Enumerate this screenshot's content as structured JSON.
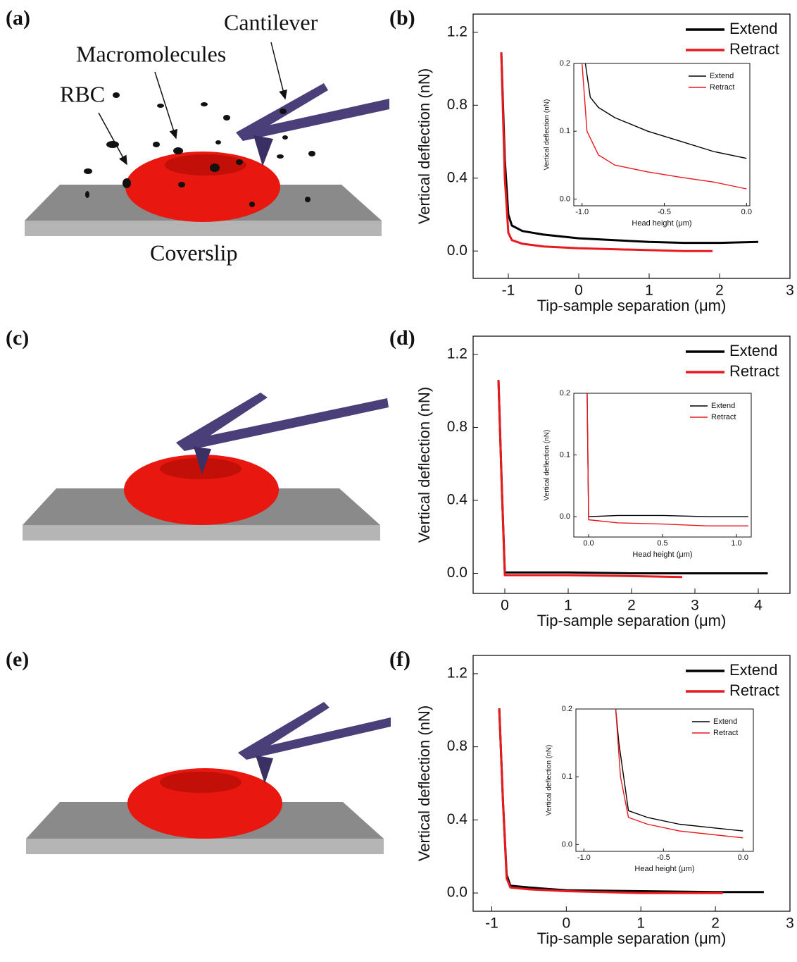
{
  "figure": {
    "panel_labels": [
      "(a)",
      "(b)",
      "(c)",
      "(d)",
      "(e)",
      "(f)"
    ],
    "annotations": {
      "cantilever": "Cantilever",
      "macromolecules": "Macromolecules",
      "rbc": "RBC",
      "coverslip": "Coverslip"
    }
  },
  "chart_data": [
    {
      "type": "line",
      "x_label": "Tip-sample separation (μm)",
      "y_label": "Vertical deflection (nN)",
      "xlim": [
        -1.5,
        3
      ],
      "ylim": [
        -0.15,
        1.3
      ],
      "xticks": [
        -1,
        0,
        1,
        2,
        3
      ],
      "yticks": [
        {
          "value": 0,
          "label": "0.0"
        },
        0.4,
        0.8,
        1.2
      ],
      "legend": "upper right",
      "series": [
        {
          "name": "Extend",
          "color": "#000000",
          "x": [
            -1.1,
            -1.05,
            -1.0,
            -0.95,
            -0.8,
            -0.5,
            0,
            0.5,
            1,
            1.5,
            2,
            2.55
          ],
          "values": [
            1.09,
            0.5,
            0.2,
            0.14,
            0.11,
            0.09,
            0.07,
            0.06,
            0.05,
            0.045,
            0.045,
            0.05
          ]
        },
        {
          "name": "Retract",
          "color": "#e8191f",
          "x": [
            -1.1,
            -1.05,
            -1.0,
            -0.95,
            -0.8,
            -0.5,
            0,
            0.5,
            1,
            1.5,
            1.9
          ],
          "values": [
            1.09,
            0.4,
            0.1,
            0.06,
            0.04,
            0.025,
            0.015,
            0.01,
            0.005,
            0,
            0
          ]
        }
      ]
    },
    {
      "type": "line",
      "x_label": "Head height (μm)",
      "y_label": "Vertical deflection (nN)",
      "xlim": [
        -1.05,
        0.02
      ],
      "ylim": [
        -0.01,
        0.2
      ],
      "xticks": [
        {
          "value": -1,
          "label": "-1.0"
        },
        -0.5,
        {
          "value": 0,
          "label": "0.0"
        }
      ],
      "yticks": [
        {
          "value": 0,
          "label": "0.0"
        },
        0.1,
        0.2
      ],
      "legend": "upper right",
      "series": [
        {
          "name": "Extend",
          "color": "#000000",
          "x": [
            -0.98,
            -0.95,
            -0.9,
            -0.8,
            -0.6,
            -0.4,
            -0.2,
            0
          ],
          "values": [
            0.2,
            0.15,
            0.135,
            0.12,
            0.1,
            0.085,
            0.07,
            0.06
          ]
        },
        {
          "name": "Retract",
          "color": "#e8191f",
          "x": [
            -1.0,
            -0.97,
            -0.9,
            -0.8,
            -0.6,
            -0.4,
            -0.2,
            0
          ],
          "values": [
            0.2,
            0.1,
            0.065,
            0.05,
            0.04,
            0.032,
            0.025,
            0.015
          ]
        }
      ]
    },
    {
      "type": "line",
      "x_label": "Tip-sample separation (μm)",
      "y_label": "Vertical deflection (nN)",
      "xlim": [
        -0.5,
        4.5
      ],
      "ylim": [
        -0.11,
        1.3
      ],
      "xticks": [
        0,
        1,
        2,
        3,
        4
      ],
      "yticks": [
        {
          "value": 0,
          "label": "0.0"
        },
        0.4,
        0.8,
        1.2
      ],
      "legend": "upper right",
      "series": [
        {
          "name": "Extend",
          "color": "#000000",
          "x": [
            -0.1,
            -0.05,
            0,
            1,
            2,
            3,
            4.15
          ],
          "values": [
            1.06,
            0.5,
            0.005,
            0.005,
            0,
            0,
            0
          ]
        },
        {
          "name": "Retract",
          "color": "#e8191f",
          "x": [
            -0.1,
            -0.05,
            0,
            1,
            2,
            2.8
          ],
          "values": [
            1.06,
            0.5,
            -0.01,
            -0.01,
            -0.015,
            -0.02
          ]
        }
      ]
    },
    {
      "type": "line",
      "x_label": "Head height (μm)",
      "y_label": "Vertical deflection (nN)",
      "xlim": [
        -0.1,
        1.1
      ],
      "ylim": [
        -0.033,
        0.2
      ],
      "xticks": [
        {
          "value": 0,
          "label": "0.0"
        },
        0.5,
        {
          "value": 1,
          "label": "1.0"
        }
      ],
      "yticks": [
        {
          "value": 0,
          "label": "0.0"
        },
        0.1,
        0.2
      ],
      "legend": "upper right",
      "series": [
        {
          "name": "Extend",
          "color": "#000000",
          "x": [
            -0.01,
            0,
            0.2,
            0.5,
            0.8,
            1.08
          ],
          "values": [
            0.2,
            0,
            0.002,
            0.002,
            0,
            0
          ]
        },
        {
          "name": "Retract",
          "color": "#e8191f",
          "x": [
            -0.01,
            0,
            0.2,
            0.5,
            0.8,
            1.08
          ],
          "values": [
            0.2,
            -0.005,
            -0.01,
            -0.012,
            -0.015,
            -0.015
          ]
        }
      ]
    },
    {
      "type": "line",
      "x_label": "Tip-sample separation (μm)",
      "y_label": "Vertical deflection (nN)",
      "xlim": [
        -1.25,
        3
      ],
      "ylim": [
        -0.1,
        1.3
      ],
      "xticks": [
        -1,
        0,
        1,
        2,
        3
      ],
      "yticks": [
        {
          "value": 0,
          "label": "0.0"
        },
        0.4,
        0.8,
        1.2
      ],
      "legend": "upper right",
      "series": [
        {
          "name": "Extend",
          "color": "#000000",
          "x": [
            -0.9,
            -0.85,
            -0.8,
            -0.75,
            -0.5,
            0,
            1,
            2,
            2.65
          ],
          "values": [
            1.01,
            0.5,
            0.1,
            0.04,
            0.03,
            0.015,
            0.01,
            0.005,
            0.005
          ]
        },
        {
          "name": "Retract",
          "color": "#e8191f",
          "x": [
            -0.9,
            -0.85,
            -0.8,
            -0.75,
            -0.5,
            0,
            1,
            2,
            2.1
          ],
          "values": [
            1.01,
            0.5,
            0.08,
            0.03,
            0.02,
            0.01,
            0,
            0,
            0
          ]
        }
      ]
    },
    {
      "type": "line",
      "x_label": "Head height (μm)",
      "y_label": "Vertical deflection (nN)",
      "xlim": [
        -1.05,
        0.065
      ],
      "ylim": [
        -0.01,
        0.2
      ],
      "xticks": [
        {
          "value": -1,
          "label": "-1.0"
        },
        -0.5,
        {
          "value": 0,
          "label": "0.0"
        }
      ],
      "yticks": [
        {
          "value": 0,
          "label": "0.0"
        },
        0.1,
        0.2
      ],
      "legend": "upper right",
      "series": [
        {
          "name": "Extend",
          "color": "#000000",
          "x": [
            -0.8,
            -0.78,
            -0.72,
            -0.6,
            -0.4,
            -0.2,
            0
          ],
          "values": [
            0.2,
            0.15,
            0.05,
            0.04,
            0.03,
            0.025,
            0.02
          ]
        },
        {
          "name": "Retract",
          "color": "#e8191f",
          "x": [
            -0.8,
            -0.77,
            -0.72,
            -0.6,
            -0.4,
            -0.2,
            0
          ],
          "values": [
            0.2,
            0.1,
            0.04,
            0.03,
            0.02,
            0.015,
            0.01
          ]
        }
      ]
    }
  ]
}
